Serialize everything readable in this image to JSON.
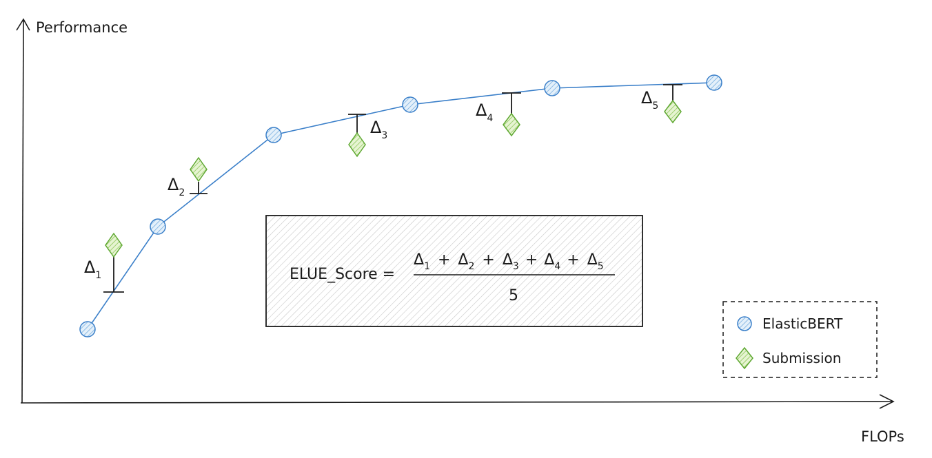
{
  "axes": {
    "y_label": "Performance",
    "x_label": "FLOPs"
  },
  "legend": [
    {
      "key": "elasticbert",
      "label": "ElasticBERT",
      "marker": "circle",
      "color": "#7fb3e0"
    },
    {
      "key": "submission",
      "label": "Submission",
      "marker": "diamond",
      "color": "#a6d96a"
    }
  ],
  "formula": {
    "lhs": "ELUE_Score =",
    "numerator": [
      {
        "symbol": "Δ",
        "sub": "1"
      },
      {
        "op": "+"
      },
      {
        "symbol": "Δ",
        "sub": "2"
      },
      {
        "op": "+"
      },
      {
        "symbol": "Δ",
        "sub": "3"
      },
      {
        "op": "+"
      },
      {
        "symbol": "Δ",
        "sub": "4"
      },
      {
        "op": "+"
      },
      {
        "symbol": "Δ",
        "sub": "5"
      }
    ],
    "denominator": "5"
  },
  "deltas": [
    {
      "symbol": "Δ",
      "sub": "1"
    },
    {
      "symbol": "Δ",
      "sub": "2"
    },
    {
      "symbol": "Δ",
      "sub": "3"
    },
    {
      "symbol": "Δ",
      "sub": "4"
    },
    {
      "symbol": "Δ",
      "sub": "5"
    }
  ],
  "colors": {
    "line": "#3a7fc9",
    "circle_fill": "#cfe3f5",
    "circle_stroke": "#3a7fc9",
    "diamond_fill": "#d4ecb0",
    "diamond_stroke": "#5fa832",
    "box_hatch": "#c8c8c8"
  }
}
